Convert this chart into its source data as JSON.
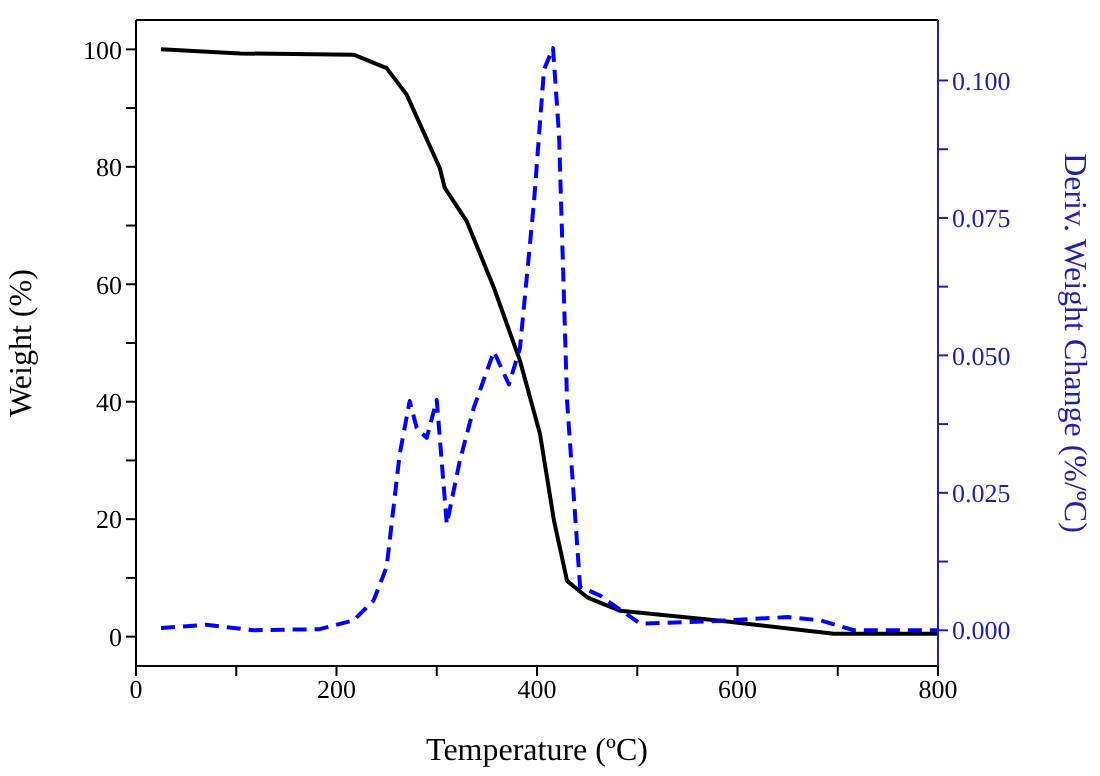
{
  "chart_data": {
    "type": "line",
    "xlabel": "Temperature (ºC)",
    "ylabel": "Weight (%)",
    "y2label": "Deriv. Weight Change (%/ºC)",
    "xlim": [
      0,
      800
    ],
    "xticks": [
      0,
      {
        "value": 100,
        "label": null
      },
      200,
      {
        "value": 300,
        "label": null
      },
      400,
      {
        "value": 500,
        "label": null
      },
      600,
      {
        "value": 700,
        "label": null
      },
      800
    ],
    "ylim": [
      -5,
      105
    ],
    "yticks": [
      0,
      {
        "value": 10,
        "label": null
      },
      20,
      {
        "value": 30,
        "label": null
      },
      40,
      {
        "value": 50,
        "label": null
      },
      60,
      {
        "value": 70,
        "label": null
      },
      80,
      {
        "value": 90,
        "label": null
      },
      100
    ],
    "y2lim": [
      -0.0065,
      0.111
    ],
    "y2ticks": [
      {
        "value": 0,
        "label": "0.000"
      },
      {
        "value": 0.0125,
        "label": null
      },
      {
        "value": 0.025,
        "label": "0.025"
      },
      {
        "value": 0.0375,
        "label": null
      },
      {
        "value": 0.05,
        "label": "0.050"
      },
      {
        "value": 0.0625,
        "label": null
      },
      {
        "value": 0.075,
        "label": "0.075"
      },
      {
        "value": 0.0875,
        "label": null
      },
      {
        "value": 0.1,
        "label": "0.100"
      }
    ],
    "marker": "none",
    "series": [
      {
        "color": "#000000",
        "line_style": "solid",
        "x": [
          25,
          104,
          217,
          250,
          270,
          303,
          308,
          330,
          357,
          383,
          403,
          417,
          430,
          450,
          483,
          583,
          696,
          800
        ],
        "values": [
          100,
          99.3,
          99.1,
          96.8,
          92.3,
          79.8,
          76.4,
          70.7,
          59.4,
          47,
          34.5,
          19.7,
          9.5,
          6.7,
          4.4,
          2.7,
          0.5,
          0.5
        ]
      },
      {
        "color": "#0000ff",
        "line_style": "dashed",
        "axis": "y2",
        "x": [
          25,
          70,
          117,
          183,
          217,
          237,
          250,
          263,
          273,
          280,
          290,
          300,
          310,
          323,
          337,
          357,
          372,
          383,
          397,
          407,
          416,
          422,
          430,
          443,
          463,
          503,
          570,
          650,
          683,
          716,
          800
        ],
        "values": [
          0.0004,
          0.001,
          0,
          0.0002,
          0.0018,
          0.0054,
          0.0115,
          0.032,
          0.0417,
          0.0368,
          0.035,
          0.0419,
          0.0193,
          0.0308,
          0.0405,
          0.0507,
          0.0447,
          0.0513,
          0.0779,
          0.102,
          0.1059,
          0.09,
          0.0417,
          0.0079,
          0.0063,
          0.0012,
          0.0016,
          0.0024,
          0.0018,
          0,
          0
        ]
      }
    ]
  }
}
